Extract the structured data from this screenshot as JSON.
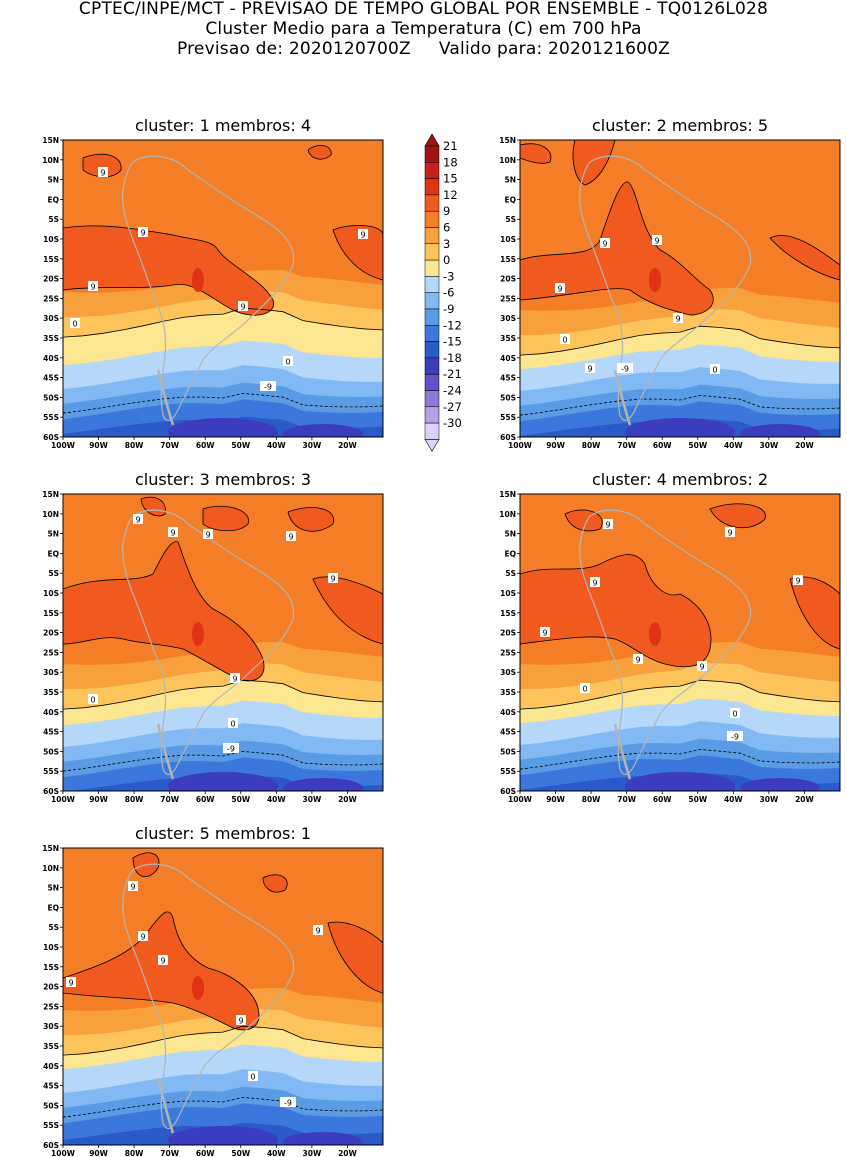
{
  "header": {
    "line1": "CPTEC/INPE/MCT - PREVISAO DE TEMPO GLOBAL POR ENSEMBLE - TQ0126L028",
    "line2": "Cluster Medio para a Temperatura (C) em 700 hPa",
    "line3_label_a": "Previsao de:",
    "line3_value_a": "2020120700Z",
    "line3_label_b": "Valido para:",
    "line3_value_b": "2020121600Z"
  },
  "panels": [
    {
      "cluster_label": "cluster:",
      "cluster": "1",
      "members_label": "membros:",
      "members": "4"
    },
    {
      "cluster_label": "cluster:",
      "cluster": "2",
      "members_label": "membros:",
      "members": "5"
    },
    {
      "cluster_label": "cluster:",
      "cluster": "3",
      "members_label": "membros:",
      "members": "3"
    },
    {
      "cluster_label": "cluster:",
      "cluster": "4",
      "members_label": "membros:",
      "members": "2"
    },
    {
      "cluster_label": "cluster:",
      "cluster": "5",
      "members_label": "membros:",
      "members": "1"
    }
  ],
  "axes": {
    "lat_labels": [
      "15N",
      "10N",
      "5N",
      "EQ",
      "5S",
      "10S",
      "15S",
      "20S",
      "25S",
      "30S",
      "35S",
      "40S",
      "45S",
      "50S",
      "55S",
      "60S"
    ],
    "lon_labels": [
      "100W",
      "90W",
      "80W",
      "70W",
      "60W",
      "50W",
      "40W",
      "30W",
      "20W"
    ]
  },
  "legend": {
    "levels": [
      "21",
      "18",
      "15",
      "12",
      "9",
      "6",
      "3",
      "0",
      "-3",
      "-6",
      "-9",
      "-12",
      "-15",
      "-18",
      "-21",
      "-24",
      "-27",
      "-30"
    ],
    "colors": [
      "#a01414",
      "#c81e1e",
      "#e03214",
      "#f05a1e",
      "#f47e28",
      "#f8a03c",
      "#fcc45a",
      "#fce690",
      "#b4d7fa",
      "#82b9f5",
      "#5a9be6",
      "#3c78dc",
      "#2a5ac8",
      "#3c3cbe",
      "#6450c8",
      "#8c78dc",
      "#b4a0e6",
      "#dcd2f5"
    ]
  },
  "contour_labels": {
    "nine": "9",
    "zero": "0",
    "minus_nine": "-9"
  }
}
